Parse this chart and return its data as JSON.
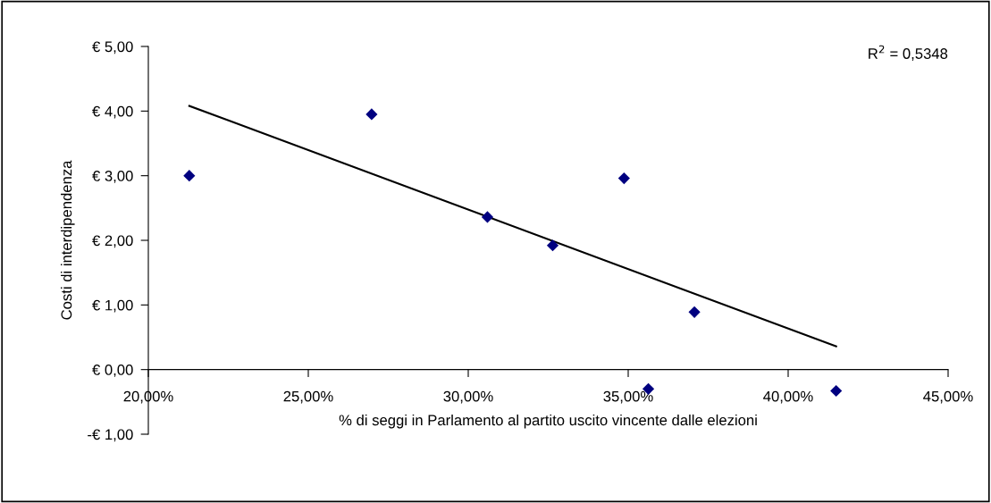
{
  "chart_data": {
    "type": "scatter",
    "xlabel": "% di seggi in Parlamento al partito uscito vincente dalle elezioni",
    "ylabel": "Costi di interdipendenza",
    "annotations": [
      "R$^{2}$ = 0,5348"
    ],
    "marker": "diamond",
    "grid": false,
    "series": [
      {
        "color": "#000080",
        "x": [
          21.28,
          26.98,
          30.6,
          32.64,
          34.87,
          35.63,
          37.07,
          41.5
        ],
        "values": [
          3.0,
          3.95,
          2.36,
          1.92,
          2.96,
          -0.3,
          0.89,
          -0.33
        ]
      },
      {
        "type": "line",
        "color": "#000000",
        "marker": "none",
        "x": [
          21.28,
          41.5
        ],
        "values": [
          4.08,
          0.36
        ]
      }
    ],
    "xlim": [
      20,
      45
    ],
    "ylim": [
      -1,
      5
    ],
    "xticks": [
      {
        "value": 20,
        "label": "20,00%"
      },
      {
        "value": 25,
        "label": "25,00%"
      },
      {
        "value": 30,
        "label": "30,00%"
      },
      {
        "value": 35,
        "label": "35,00%"
      },
      {
        "value": 40,
        "label": "40,00%"
      },
      {
        "value": 45,
        "label": "45,00%"
      }
    ],
    "yticks": [
      {
        "value": -1,
        "label": "-€ 1,00"
      },
      {
        "value": 0,
        "label": "€ 0,00"
      },
      {
        "value": 1,
        "label": "€ 1,00"
      },
      {
        "value": 2,
        "label": "€ 2,00"
      },
      {
        "value": 3,
        "label": "€ 3,00"
      },
      {
        "value": 4,
        "label": "€ 4,00"
      },
      {
        "value": 5,
        "label": "€ 5,00"
      }
    ]
  }
}
